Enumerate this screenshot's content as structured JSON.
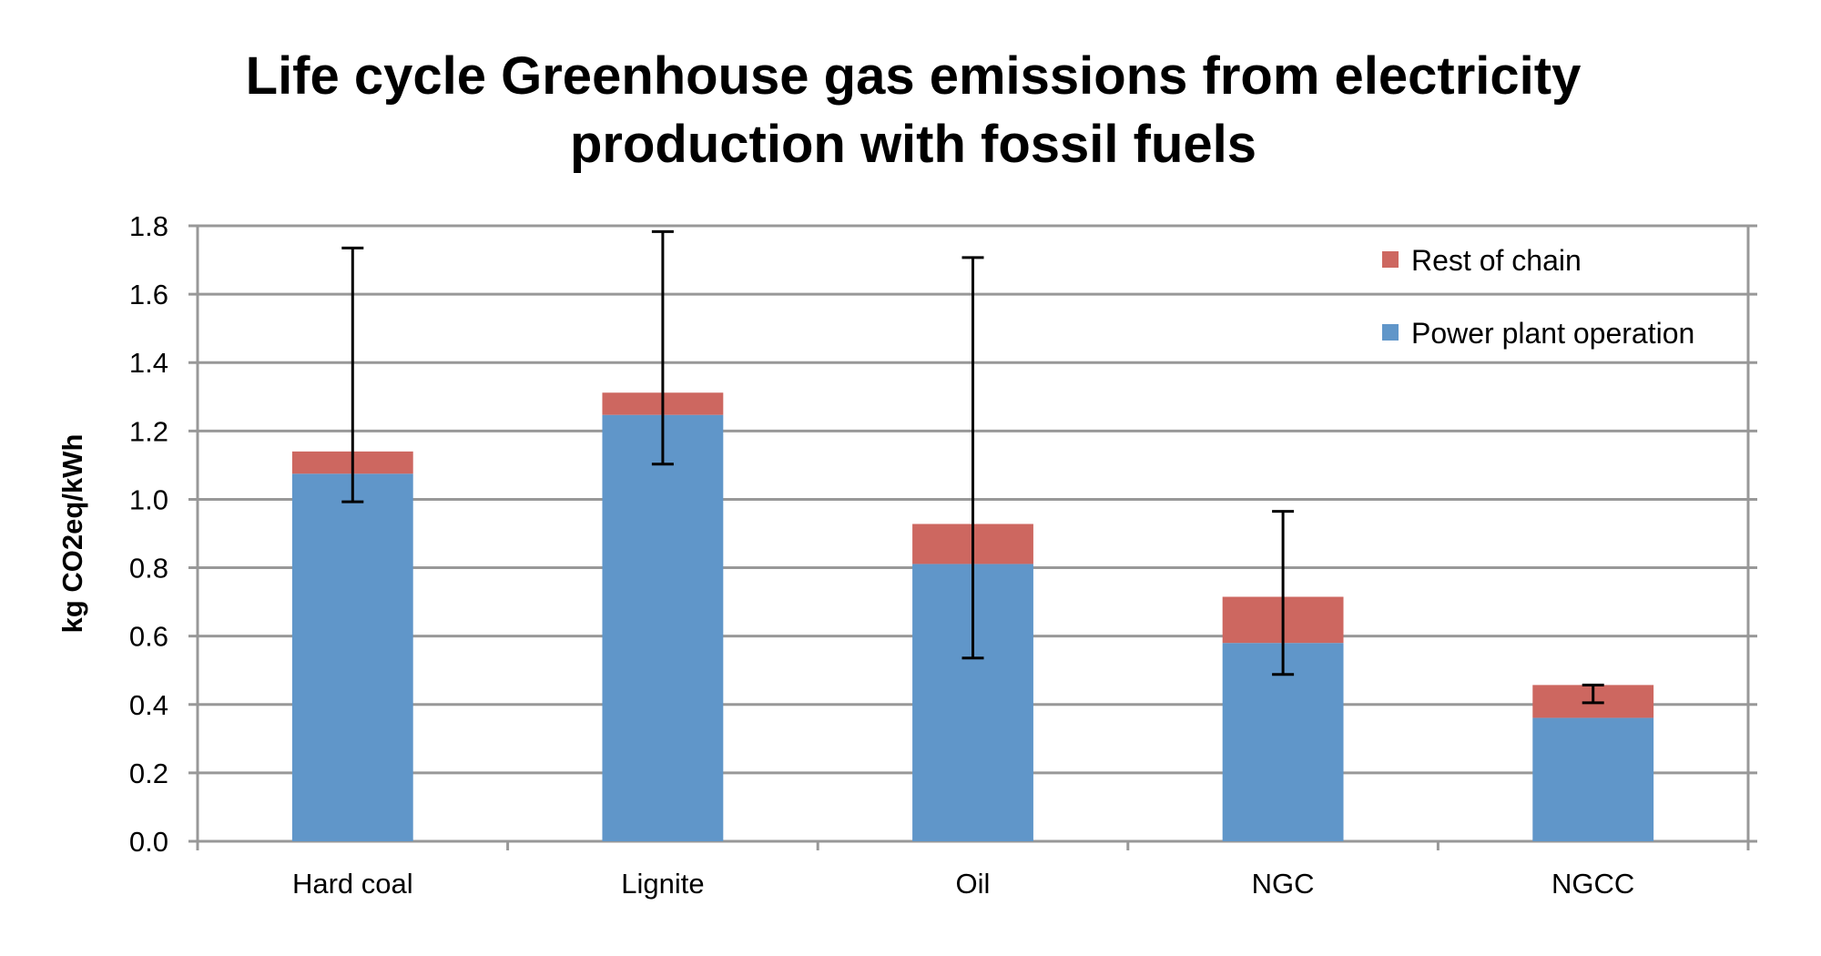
{
  "chart_data": {
    "type": "bar",
    "stacked": true,
    "title_lines": [
      "Life cycle Greenhouse gas emissions from electricity",
      "production with fossil fuels"
    ],
    "xlabel": "",
    "ylabel": "kg CO2eq/kWh",
    "ylim": [
      0,
      1.8
    ],
    "yticks": [
      "0.0",
      "0.2",
      "0.4",
      "0.6",
      "0.8",
      "1.0",
      "1.2",
      "1.4",
      "1.6",
      "1.8"
    ],
    "grid": true,
    "legend_placement": "top-right",
    "categories": [
      "Hard coal",
      "Lignite",
      "Oil",
      "NGC",
      "NGCC"
    ],
    "series": [
      {
        "name": "Power plant operation",
        "color": "#6096C9",
        "values": [
          1.075,
          1.247,
          0.811,
          0.58,
          0.361
        ]
      },
      {
        "name": "Rest of chain",
        "color": "#CD6760",
        "values": [
          0.065,
          0.065,
          0.117,
          0.135,
          0.096
        ]
      }
    ],
    "error_bars": {
      "low": [
        0.993,
        1.103,
        0.536,
        0.488,
        0.405
      ],
      "high": [
        1.735,
        1.783,
        1.707,
        0.965,
        0.457
      ]
    },
    "legend_order": [
      "Rest of chain",
      "Power plant operation"
    ]
  }
}
